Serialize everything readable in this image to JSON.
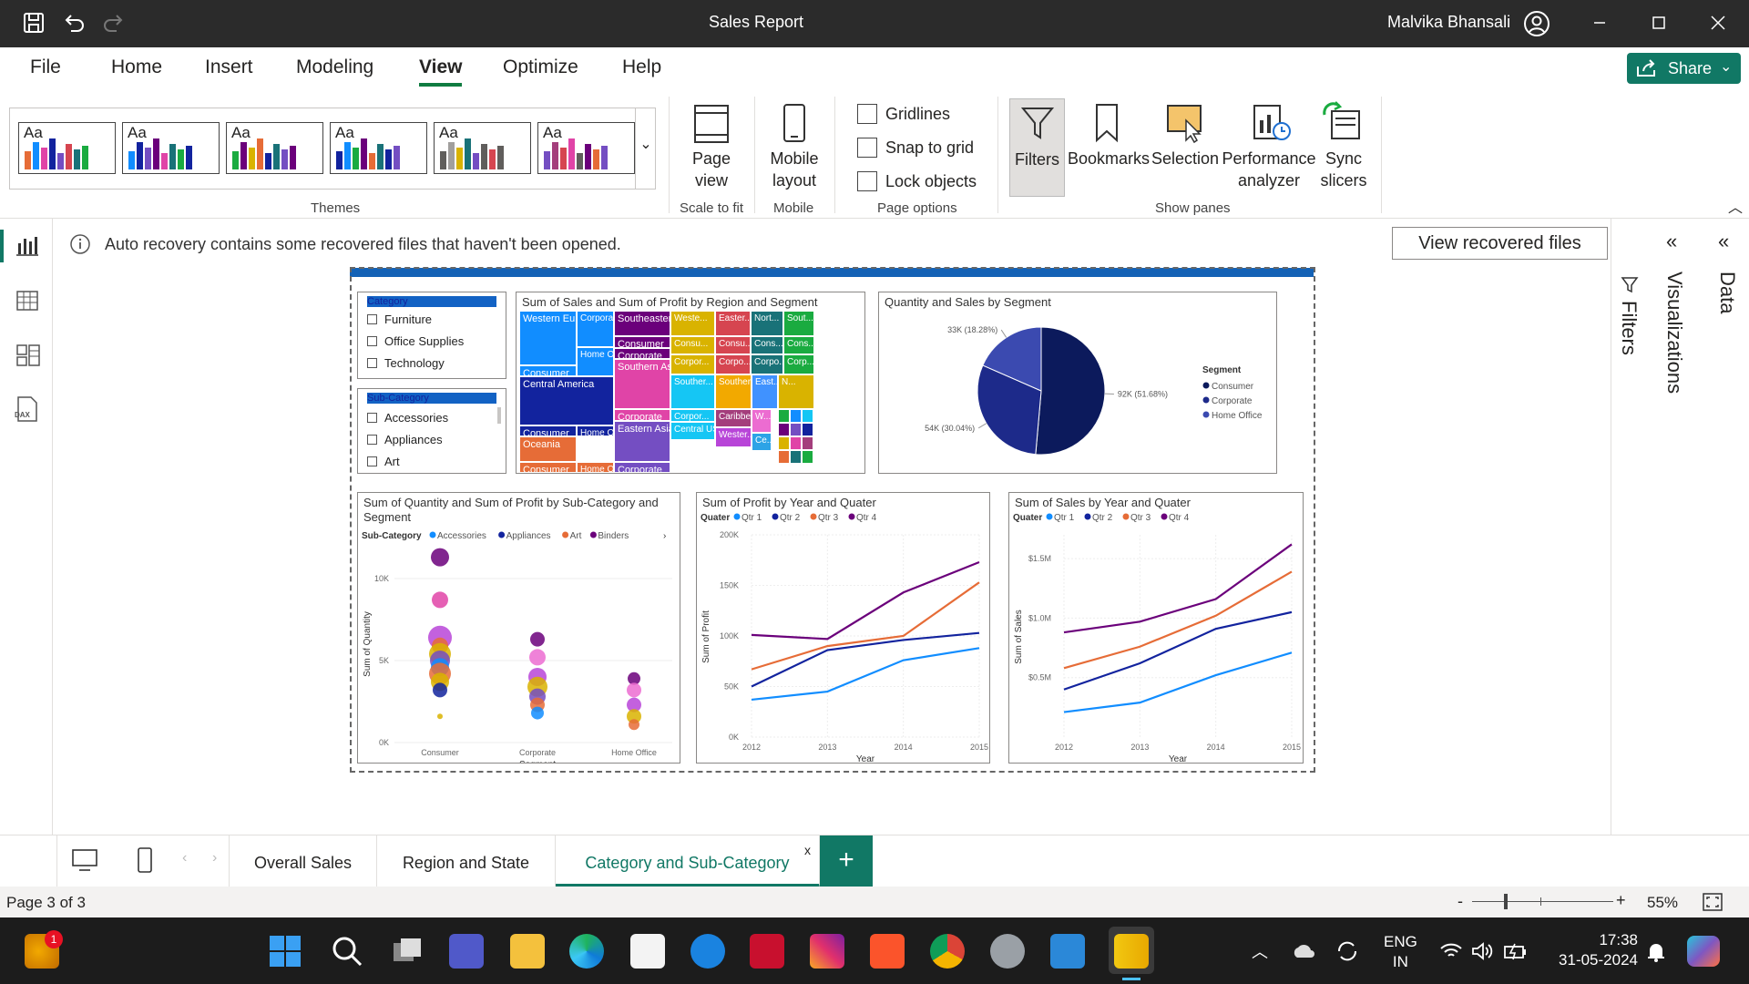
{
  "titlebar": {
    "title": "Sales Report",
    "user": "Malvika Bhansali"
  },
  "menu": [
    "File",
    "Home",
    "Insert",
    "Modeling",
    "View",
    "Optimize",
    "Help"
  ],
  "share": "Share",
  "ribbon": {
    "themes_label": "Themes",
    "theme_aa": "Aa",
    "page_view": "Page view",
    "scale_to_fit": "Scale to fit",
    "mobile_layout": "Mobile layout",
    "mobile": "Mobile",
    "gridlines": "Gridlines",
    "snap": "Snap to grid",
    "lock": "Lock objects",
    "page_options": "Page options",
    "filters": "Filters",
    "bookmarks": "Bookmarks",
    "selection": "Selection",
    "performance": "Performance analyzer",
    "sync": "Sync slicers",
    "show_panes": "Show panes"
  },
  "notification": {
    "text": "Auto recovery contains some recovered files that haven't been opened.",
    "button": "View recovered files"
  },
  "panes": {
    "filters": "Filters",
    "visualizations": "Visualizations",
    "data": "Data"
  },
  "slicer_category": {
    "header": "Category",
    "items": [
      "Furniture",
      "Office Supplies",
      "Technology"
    ]
  },
  "slicer_subcategory": {
    "header": "Sub-Category",
    "items": [
      "Accessories",
      "Appliances",
      "Art"
    ]
  },
  "treemap": {
    "title": "Sum of Sales and Sum of Profit by Region and Segment",
    "cells": [
      {
        "t": "Western Europe",
        "c": "#118dff"
      },
      {
        "t": "Corporate",
        "c": "#118dff"
      },
      {
        "t": "Consumer",
        "c": "#118dff"
      },
      {
        "t": "Home Of...",
        "c": "#118dff"
      },
      {
        "t": "Central America",
        "c": "#12239e"
      },
      {
        "t": "Consumer",
        "c": "#12239e"
      },
      {
        "t": "Home Of...",
        "c": "#12239e"
      },
      {
        "t": "Oceania",
        "c": "#e66c37"
      },
      {
        "t": "Consumer",
        "c": "#e66c37"
      },
      {
        "t": "Home Of...",
        "c": "#e66c37"
      },
      {
        "t": "Southeaster...",
        "c": "#6b007b"
      },
      {
        "t": "Consumer",
        "c": "#6b007b"
      },
      {
        "t": "Corporate",
        "c": "#6b007b"
      },
      {
        "t": "Southern Asia",
        "c": "#e044a7"
      },
      {
        "t": "Corporate",
        "c": "#e044a7"
      },
      {
        "t": "Eastern Asia",
        "c": "#744ec2"
      },
      {
        "t": "Corporate",
        "c": "#744ec2"
      },
      {
        "t": "Weste...",
        "c": "#d9b300"
      },
      {
        "t": "Consu...",
        "c": "#d9b300"
      },
      {
        "t": "Corpor...",
        "c": "#d9b300"
      },
      {
        "t": "Easter...",
        "c": "#d64550"
      },
      {
        "t": "Consu...",
        "c": "#d64550"
      },
      {
        "t": "Corpo...",
        "c": "#d64550"
      },
      {
        "t": "Nort...",
        "c": "#197278"
      },
      {
        "t": "Cons...",
        "c": "#197278"
      },
      {
        "t": "Corpo...",
        "c": "#197278"
      },
      {
        "t": "Sout...",
        "c": "#1aab40"
      },
      {
        "t": "Cons...",
        "c": "#1aab40"
      },
      {
        "t": "Corp...",
        "c": "#1aab40"
      },
      {
        "t": "Souther...",
        "c": "#15c6f4"
      },
      {
        "t": "Corpor...",
        "c": "#15c6f4"
      },
      {
        "t": "Central US",
        "c": "#15c6f4"
      },
      {
        "t": "Souther...",
        "c": "#f2a900"
      },
      {
        "t": "Caribbe...",
        "c": "#a43e7c"
      },
      {
        "t": "Wester...",
        "c": "#b845d8"
      },
      {
        "t": "East...",
        "c": "#4092ff"
      },
      {
        "t": "W...",
        "c": "#ec6cd1"
      },
      {
        "t": "Ce...",
        "c": "#2da3e6"
      },
      {
        "t": "N...",
        "c": "#d9b300"
      }
    ]
  },
  "pie": {
    "title": "Quantity and Sales by Segment",
    "legend_title": "Segment",
    "chart_data": {
      "type": "pie",
      "labels": [
        "Consumer",
        "Corporate",
        "Home Office"
      ],
      "values": [
        92,
        54,
        33
      ],
      "display": [
        "92K (51.68%)",
        "54K (30.04%)",
        "33K (18.28%)"
      ],
      "colors": [
        "#0c1a5c",
        "#1d2a8a",
        "#3b4ab0"
      ]
    }
  },
  "scatter": {
    "title": "Sum of Quantity and Sum of Profit by Sub-Category and Segment",
    "legend_title": "Sub-Category",
    "legend": [
      "Accessories",
      "Appliances",
      "Art",
      "Binders"
    ],
    "xlabel": "Segment",
    "ylabel": "Sum of Quantity",
    "ticks": [
      "0K",
      "5K",
      "10K"
    ],
    "chart_data": {
      "type": "scatter",
      "categories": [
        "Consumer",
        "Corporate",
        "Home Office"
      ],
      "ylim": [
        0,
        12000
      ],
      "points": [
        {
          "x": 0,
          "y": 11300,
          "r": 10,
          "c": "#6b007b"
        },
        {
          "x": 0,
          "y": 8700,
          "r": 9,
          "c": "#e044a7"
        },
        {
          "x": 0,
          "y": 6400,
          "r": 13,
          "c": "#b845d8"
        },
        {
          "x": 0,
          "y": 5900,
          "r": 9,
          "c": "#e66c37"
        },
        {
          "x": 0,
          "y": 5400,
          "r": 12,
          "c": "#d9b300"
        },
        {
          "x": 0,
          "y": 5000,
          "r": 11,
          "c": "#744ec2"
        },
        {
          "x": 0,
          "y": 4600,
          "r": 10,
          "c": "#118dff"
        },
        {
          "x": 0,
          "y": 4200,
          "r": 12,
          "c": "#e66c37"
        },
        {
          "x": 0,
          "y": 3700,
          "r": 10,
          "c": "#d9b300"
        },
        {
          "x": 0,
          "y": 3200,
          "r": 8,
          "c": "#12239e"
        },
        {
          "x": 0,
          "y": 1600,
          "r": 3,
          "c": "#d9b300"
        },
        {
          "x": 1,
          "y": 6300,
          "r": 8,
          "c": "#6b007b"
        },
        {
          "x": 1,
          "y": 5200,
          "r": 9,
          "c": "#ec6cd1"
        },
        {
          "x": 1,
          "y": 4000,
          "r": 10,
          "c": "#b845d8"
        },
        {
          "x": 1,
          "y": 3400,
          "r": 11,
          "c": "#d9b300"
        },
        {
          "x": 1,
          "y": 2800,
          "r": 9,
          "c": "#744ec2"
        },
        {
          "x": 1,
          "y": 2300,
          "r": 8,
          "c": "#e66c37"
        },
        {
          "x": 1,
          "y": 1800,
          "r": 7,
          "c": "#118dff"
        },
        {
          "x": 2,
          "y": 3900,
          "r": 7,
          "c": "#6b007b"
        },
        {
          "x": 2,
          "y": 3200,
          "r": 8,
          "c": "#ec6cd1"
        },
        {
          "x": 2,
          "y": 2300,
          "r": 8,
          "c": "#b845d8"
        },
        {
          "x": 2,
          "y": 1600,
          "r": 8,
          "c": "#d9b300"
        },
        {
          "x": 2,
          "y": 1100,
          "r": 6,
          "c": "#e66c37"
        }
      ]
    }
  },
  "profit_line": {
    "title": "Sum of Profit by Year and Quater",
    "legend_title": "Quater",
    "legend": [
      "Qtr 1",
      "Qtr 2",
      "Qtr 3",
      "Qtr 4"
    ],
    "xlabel": "Year",
    "ylabel": "Sum of Profit",
    "yticks": [
      "0K",
      "50K",
      "100K",
      "150K",
      "200K"
    ],
    "chart_data": {
      "type": "line",
      "x": [
        "2012",
        "2013",
        "2014",
        "2015"
      ],
      "ylim": [
        0,
        200000
      ],
      "series": [
        {
          "name": "Qtr 1",
          "c": "#118dff",
          "values": [
            37000,
            45000,
            76000,
            88000
          ]
        },
        {
          "name": "Qtr 2",
          "c": "#12239e",
          "values": [
            50000,
            86000,
            96000,
            103000
          ]
        },
        {
          "name": "Qtr 3",
          "c": "#e66c37",
          "values": [
            67000,
            90000,
            100000,
            153000
          ]
        },
        {
          "name": "Qtr 4",
          "c": "#6b007b",
          "values": [
            101000,
            97000,
            143000,
            173000
          ]
        }
      ]
    }
  },
  "sales_line": {
    "title": "Sum of Sales by Year and Quater",
    "legend_title": "Quater",
    "legend": [
      "Qtr 1",
      "Qtr 2",
      "Qtr 3",
      "Qtr 4"
    ],
    "xlabel": "Year",
    "ylabel": "Sum of Sales",
    "yticks": [
      "$0.5M",
      "$1.0M",
      "$1.5M"
    ],
    "chart_data": {
      "type": "line",
      "x": [
        "2012",
        "2013",
        "2014",
        "2015"
      ],
      "ylim": [
        0,
        1700000
      ],
      "series": [
        {
          "name": "Qtr 1",
          "c": "#118dff",
          "values": [
            210000,
            290000,
            520000,
            710000
          ]
        },
        {
          "name": "Qtr 2",
          "c": "#12239e",
          "values": [
            400000,
            620000,
            910000,
            1050000
          ]
        },
        {
          "name": "Qtr 3",
          "c": "#e66c37",
          "values": [
            580000,
            760000,
            1020000,
            1390000
          ]
        },
        {
          "name": "Qtr 4",
          "c": "#6b007b",
          "values": [
            880000,
            970000,
            1160000,
            1620000
          ]
        }
      ]
    }
  },
  "tabs": [
    "Overall Sales",
    "Region and State",
    "Category and Sub-Category"
  ],
  "status": {
    "page": "Page 3 of 3",
    "zoom": "55%"
  },
  "taskbar": {
    "lang1": "ENG",
    "lang2": "IN",
    "time": "17:38",
    "date": "31-05-2024",
    "badge": "1"
  }
}
